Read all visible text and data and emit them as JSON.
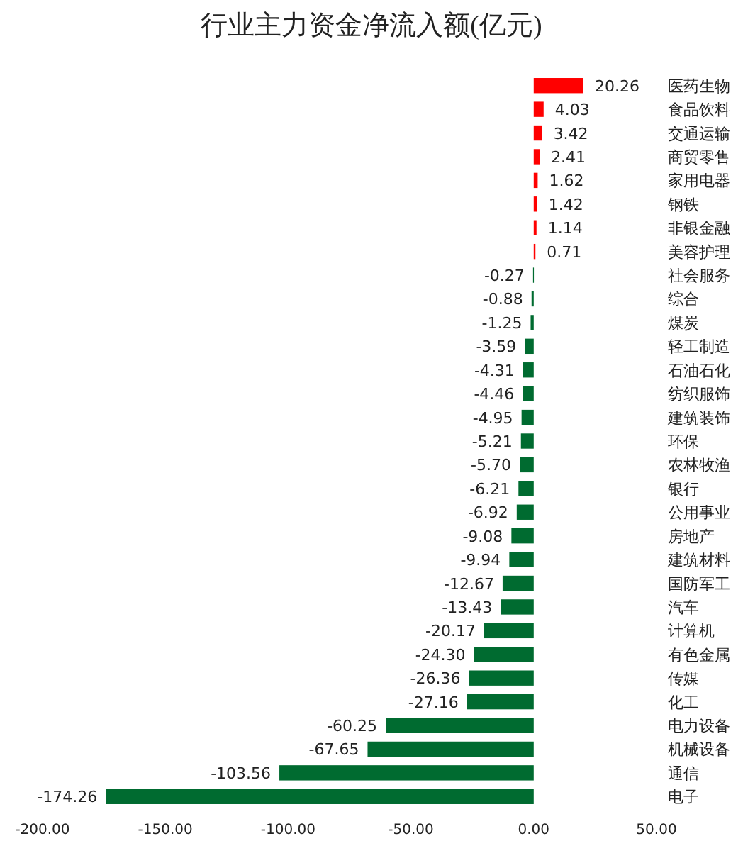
{
  "chart_data": {
    "type": "bar",
    "orientation": "horizontal",
    "title": "行业主力资金净流入额(亿元)",
    "categories": [
      "医药生物",
      "食品饮料",
      "交通运输",
      "商贸零售",
      "家用电器",
      "钢铁",
      "非银金融",
      "美容护理",
      "社会服务",
      "综合",
      "煤炭",
      "轻工制造",
      "石油石化",
      "纺织服饰",
      "建筑装饰",
      "环保",
      "农林牧渔",
      "银行",
      "公用事业",
      "房地产",
      "建筑材料",
      "国防军工",
      "汽车",
      "计算机",
      "有色金属",
      "传媒",
      "化工",
      "电力设备",
      "机械设备",
      "通信",
      "电子"
    ],
    "values": [
      20.26,
      4.03,
      3.42,
      2.41,
      1.62,
      1.42,
      1.14,
      0.71,
      -0.27,
      -0.88,
      -1.25,
      -3.59,
      -4.31,
      -4.46,
      -4.95,
      -5.21,
      -5.7,
      -6.21,
      -6.92,
      -9.08,
      -9.94,
      -12.67,
      -13.43,
      -20.17,
      -24.3,
      -26.36,
      -27.16,
      -60.25,
      -67.65,
      -103.56,
      -174.26
    ],
    "value_labels": [
      "20.26",
      "4.03",
      "3.42",
      "2.41",
      "1.62",
      "1.42",
      "1.14",
      "0.71",
      "-0.27",
      "-0.88",
      "-1.25",
      "-3.59",
      "-4.31",
      "-4.46",
      "-4.95",
      "-5.21",
      "-5.70",
      "-6.21",
      "-6.92",
      "-9.08",
      "-9.94",
      "-12.67",
      "-13.43",
      "-20.17",
      "-24.30",
      "-26.36",
      "-27.16",
      "-60.25",
      "-67.65",
      "-103.56",
      "-174.26"
    ],
    "colors": [
      "#ff0000",
      "#ff0000",
      "#ff0000",
      "#ff0000",
      "#ff0000",
      "#ff0000",
      "#ff0000",
      "#ff0000",
      "#006b30",
      "#006b30",
      "#006b30",
      "#006b30",
      "#006b30",
      "#006b30",
      "#006b30",
      "#006b30",
      "#006b30",
      "#006b30",
      "#006b30",
      "#006b30",
      "#006b30",
      "#006b30",
      "#006b30",
      "#006b30",
      "#006b30",
      "#006b30",
      "#006b30",
      "#006b30",
      "#006b30",
      "#006b30",
      "#006b30"
    ],
    "xlim": [
      -200,
      50
    ],
    "xticks": [
      {
        "value": -200,
        "label": "-200.00"
      },
      {
        "value": -150,
        "label": "-150.00"
      },
      {
        "value": -100,
        "label": "-100.00"
      },
      {
        "value": -50,
        "label": "-50.00"
      },
      {
        "value": 0,
        "label": "0.00"
      },
      {
        "value": 50,
        "label": "50.00"
      }
    ],
    "grid": false
  }
}
